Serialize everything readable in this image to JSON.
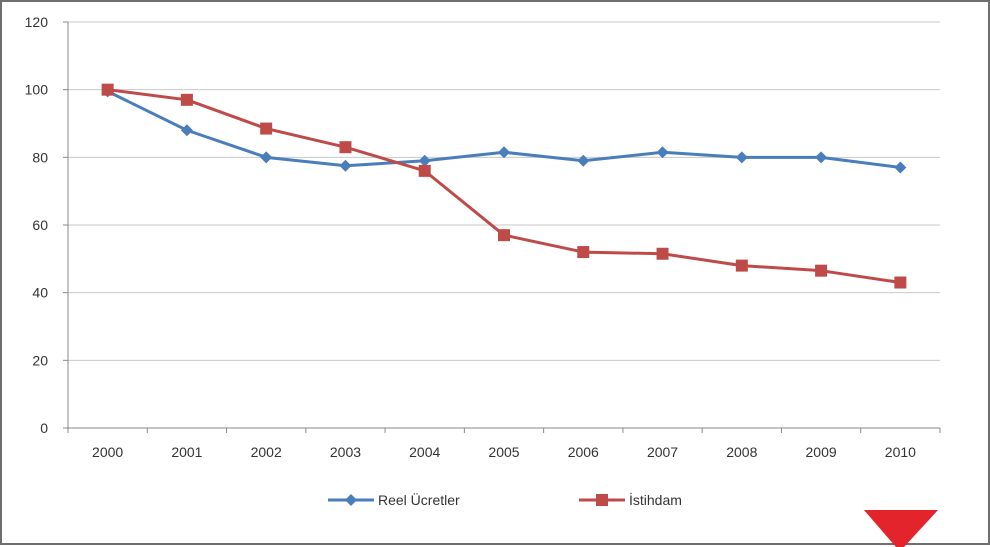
{
  "chart_data": {
    "type": "line",
    "x": [
      "2000",
      "2001",
      "2002",
      "2003",
      "2004",
      "2005",
      "2006",
      "2007",
      "2008",
      "2009",
      "2010"
    ],
    "yticks": [
      0,
      20,
      40,
      60,
      80,
      100,
      120
    ],
    "ylim": [
      0,
      120
    ],
    "grid": true,
    "legend_position": "bottom",
    "series": [
      {
        "name": "Reel Ücretler",
        "color": "#4A7EBB",
        "marker": "diamond",
        "values": [
          99.5,
          88,
          80,
          77.5,
          79,
          81.5,
          79,
          81.5,
          80,
          80,
          77
        ]
      },
      {
        "name": "İstihdam",
        "color": "#BE4B48",
        "marker": "square",
        "values": [
          100,
          97,
          88.5,
          83,
          76,
          57,
          52,
          51.5,
          48,
          46.5,
          43
        ]
      }
    ]
  },
  "decoration": {
    "corner_mark_color": "#E3242B"
  }
}
